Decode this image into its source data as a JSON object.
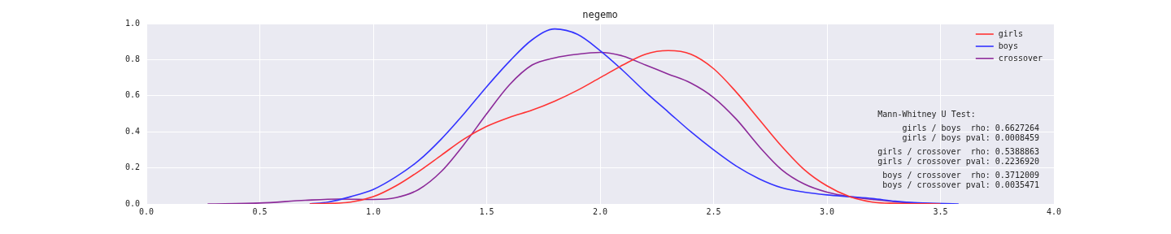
{
  "chart_data": {
    "type": "line",
    "title": "negemo",
    "xlim": [
      0,
      4
    ],
    "xticks": [
      {
        "value": 0,
        "label": "0.0"
      },
      {
        "value": 0.5,
        "label": "0.5"
      },
      {
        "value": 1,
        "label": "1.0"
      },
      {
        "value": 1.5,
        "label": "1.5"
      },
      {
        "value": 2,
        "label": "2.0"
      },
      {
        "value": 2.5,
        "label": "2.5"
      },
      {
        "value": 3,
        "label": "3.0"
      },
      {
        "value": 3.5,
        "label": "3.5"
      },
      {
        "value": 4,
        "label": "4.0"
      }
    ],
    "ylim": [
      0,
      1
    ],
    "yticks": [
      {
        "value": 0,
        "label": "0.0"
      },
      {
        "value": 0.2,
        "label": "0.2"
      },
      {
        "value": 0.4,
        "label": "0.4"
      },
      {
        "value": 0.6,
        "label": "0.6"
      },
      {
        "value": 0.8,
        "label": "0.8"
      },
      {
        "value": 1,
        "label": "1.0"
      }
    ],
    "grid": true,
    "legend": "top right",
    "marker": "none",
    "line_style": "solid",
    "series": [
      {
        "name": "girls",
        "color": "#ff3333",
        "x": [
          0.72,
          0.9,
          1.0,
          1.1,
          1.2,
          1.3,
          1.4,
          1.5,
          1.6,
          1.7,
          1.8,
          1.9,
          2.0,
          2.1,
          2.2,
          2.3,
          2.4,
          2.5,
          2.6,
          2.7,
          2.8,
          2.9,
          3.0,
          3.1,
          3.2,
          3.3,
          3.5
        ],
        "values": [
          0,
          0.01,
          0.04,
          0.1,
          0.18,
          0.27,
          0.36,
          0.43,
          0.48,
          0.52,
          0.57,
          0.63,
          0.7,
          0.77,
          0.83,
          0.85,
          0.83,
          0.75,
          0.62,
          0.47,
          0.32,
          0.19,
          0.1,
          0.04,
          0.01,
          0.003,
          0
        ]
      },
      {
        "name": "boys",
        "color": "#3333ff",
        "x": [
          0.72,
          0.8,
          0.9,
          1.0,
          1.1,
          1.2,
          1.3,
          1.4,
          1.5,
          1.6,
          1.7,
          1.8,
          1.9,
          2.0,
          2.1,
          2.2,
          2.3,
          2.4,
          2.5,
          2.6,
          2.7,
          2.8,
          2.9,
          3.0,
          3.1,
          3.2,
          3.3,
          3.4,
          3.58
        ],
        "values": [
          0,
          0.01,
          0.04,
          0.08,
          0.15,
          0.24,
          0.36,
          0.5,
          0.65,
          0.79,
          0.91,
          0.97,
          0.94,
          0.85,
          0.74,
          0.62,
          0.51,
          0.4,
          0.3,
          0.21,
          0.14,
          0.09,
          0.065,
          0.05,
          0.04,
          0.03,
          0.015,
          0.006,
          0
        ]
      },
      {
        "name": "crossover",
        "color": "#8c2a99",
        "x": [
          0.27,
          0.5,
          0.7,
          0.85,
          1.0,
          1.1,
          1.2,
          1.3,
          1.4,
          1.5,
          1.6,
          1.7,
          1.8,
          1.9,
          2.0,
          2.1,
          2.2,
          2.3,
          2.4,
          2.5,
          2.6,
          2.7,
          2.8,
          2.9,
          3.0,
          3.1,
          3.2,
          3.3,
          3.4,
          3.5
        ],
        "values": [
          0,
          0.005,
          0.02,
          0.027,
          0.025,
          0.035,
          0.08,
          0.18,
          0.33,
          0.5,
          0.66,
          0.77,
          0.81,
          0.83,
          0.84,
          0.82,
          0.77,
          0.72,
          0.67,
          0.59,
          0.47,
          0.32,
          0.19,
          0.11,
          0.065,
          0.04,
          0.025,
          0.012,
          0.004,
          0
        ]
      }
    ],
    "annotations": [
      "Mann-Whitney U Test:",
      "girls / boys  rho: 0.6627264",
      "girls / boys pval: 0.0008459",
      "girls / crossover  rho: 0.5388863",
      "girls / crossover pval: 0.2236920",
      "boys / crossover  rho: 0.3712009",
      "boys / crossover pval: 0.0035471"
    ]
  }
}
